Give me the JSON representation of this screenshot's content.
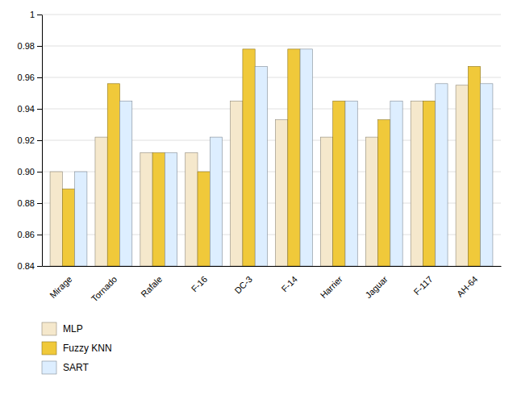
{
  "chart_data": {
    "type": "bar",
    "categories": [
      "Mirage",
      "Tornado",
      "Rafale",
      "F-16",
      "DC-3",
      "F-14",
      "Harrier",
      "Jaguar",
      "F-117",
      "AH-64"
    ],
    "series": [
      {
        "name": "MLP",
        "color": "#f5e8cc",
        "values": [
          0.9,
          0.922,
          0.912,
          0.912,
          0.945,
          0.933,
          0.922,
          0.922,
          0.945,
          0.955
        ]
      },
      {
        "name": "Fuzzy KNN",
        "color": "#f0c93a",
        "values": [
          0.889,
          0.956,
          0.912,
          0.9,
          0.978,
          0.978,
          0.945,
          0.933,
          0.945,
          0.967
        ]
      },
      {
        "name": "SART",
        "color": "#ddeeff",
        "values": [
          0.9,
          0.945,
          0.912,
          0.922,
          0.967,
          0.978,
          0.945,
          0.945,
          0.956,
          0.956
        ]
      }
    ],
    "ylim": [
      0.84,
      1.0
    ],
    "yticks": [
      0.84,
      0.86,
      0.88,
      {
        "value": 0.9,
        "label": "0.90"
      },
      0.92,
      0.94,
      0.96,
      0.98,
      1
    ],
    "grid": true,
    "legend": "bottom"
  }
}
